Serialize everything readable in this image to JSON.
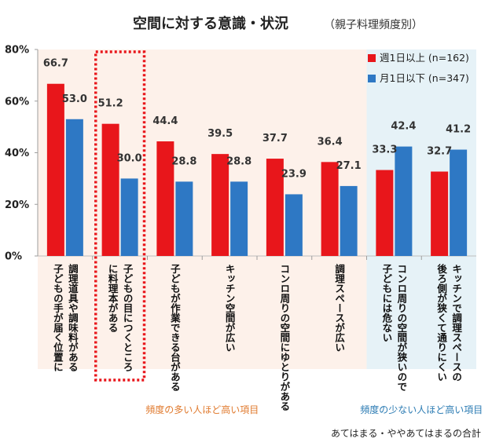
{
  "chart_data": {
    "type": "bar",
    "title": "空間に対する意識・状況",
    "subtitle": "（親子料理頻度別）",
    "ylim": [
      0,
      80
    ],
    "yticks": [
      0,
      20,
      40,
      60,
      80
    ],
    "ytick_labels": [
      "0%",
      "20%",
      "40%",
      "60%",
      "80%"
    ],
    "categories": [
      [
        "調理道具や調味料がある",
        "子どもの手が届く位置に"
      ],
      [
        "子どもの目につくところ",
        "に料理本がある"
      ],
      [
        "子どもが作業できる台がある"
      ],
      [
        "キッチン空間が広い"
      ],
      [
        "コンロ周りの空間にゆとりがある"
      ],
      [
        "調理スペースが広い"
      ],
      [
        "コンロ周りの空間が狭いので",
        "子どもには危ない"
      ],
      [
        "キッチンで調理スペースの",
        "後ろ側が狭くて通りにくい"
      ]
    ],
    "series": [
      {
        "name": "週1日以上 (n=162)",
        "color": "#e8161b",
        "values": [
          66.7,
          51.2,
          44.4,
          39.5,
          37.7,
          36.4,
          33.3,
          32.7
        ],
        "labels": [
          "66.7",
          "51.2",
          "44.4",
          "39.5",
          "37.7",
          "36.4",
          "33.3",
          "32.7"
        ]
      },
      {
        "name": "月1日以下 (n=347)",
        "color": "#2e78c4",
        "values": [
          53.0,
          30.0,
          28.8,
          28.8,
          23.9,
          27.1,
          42.4,
          41.2
        ],
        "labels": [
          "53.0",
          "30.0",
          "28.8",
          "28.8",
          "23.9",
          "27.1",
          "42.4",
          "41.2"
        ]
      }
    ],
    "groups": [
      {
        "label": "頻度の多い人ほど高い項目",
        "from": 0,
        "to": 5,
        "bg": "#fdf1ea",
        "text_color": "#e07a2e"
      },
      {
        "label": "頻度の少ない人ほど高い項目",
        "from": 6,
        "to": 7,
        "bg": "#e6f2f7",
        "text_color": "#2b7bb3"
      }
    ],
    "highlight_category": 1,
    "highlight_color": "#e8161b",
    "legend_position": "top-right",
    "footnote": "あてはまる・ややあてはまるの合計"
  }
}
